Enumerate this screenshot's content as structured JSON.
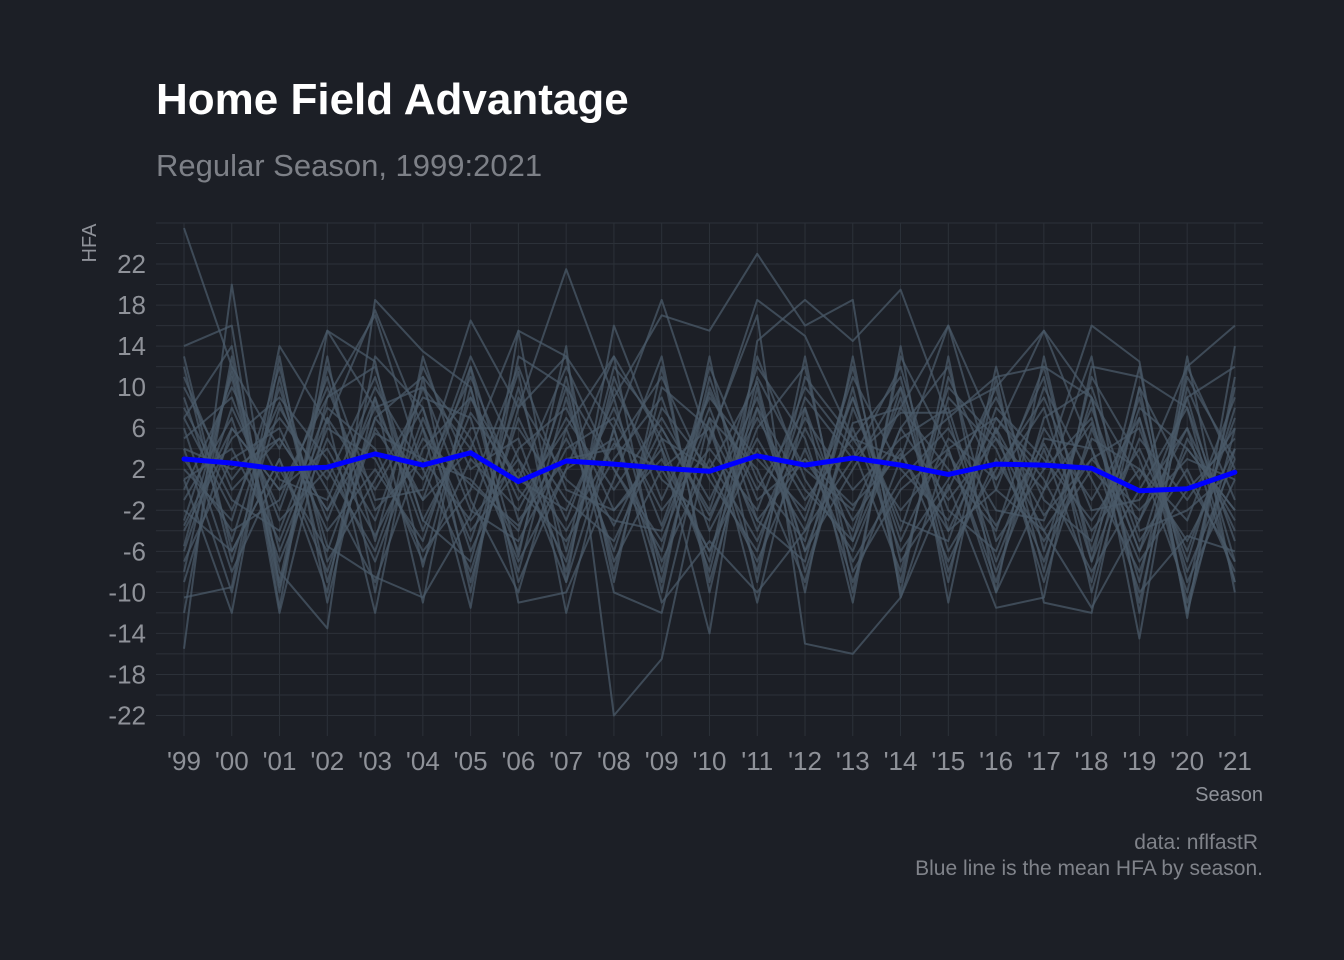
{
  "chart_data": {
    "type": "line",
    "title": "Home Field Advantage",
    "subtitle": "Regular Season, 1999:2021",
    "xlabel": "Season",
    "ylabel": "HFA",
    "caption_lines": [
      "data: nflfastR",
      "Blue line is the mean HFA by season."
    ],
    "categories": [
      "'99",
      "'00",
      "'01",
      "'02",
      "'03",
      "'04",
      "'05",
      "'06",
      "'07",
      "'08",
      "'09",
      "'10",
      "'11",
      "'12",
      "'13",
      "'14",
      "'15",
      "'16",
      "'17",
      "'18",
      "'19",
      "'20",
      "'21"
    ],
    "ylim": [
      -24,
      26
    ],
    "y_ticks": [
      -22,
      -18,
      -14,
      -10,
      -6,
      -2,
      2,
      6,
      10,
      14,
      18,
      22
    ],
    "grid": true,
    "colors": {
      "background": "#1c1f26",
      "grid": "#2c3139",
      "team_lines": "#4a5a68",
      "mean_line": "#0000ff"
    },
    "series": [
      {
        "values": [
          25.5,
          12,
          4,
          15.5,
          8,
          10,
          4,
          15.5,
          13,
          6,
          18.5,
          4.5,
          18.5,
          15,
          5,
          3,
          16,
          5.5,
          15.5,
          9,
          1,
          12,
          16
        ]
      },
      {
        "values": [
          -15.5,
          20,
          -9.5,
          9,
          17,
          2,
          16.5,
          8,
          21.5,
          9,
          17,
          15.5,
          23,
          16,
          18.5,
          -10.5,
          4,
          7,
          2,
          16,
          12.5,
          -12.5,
          14
        ]
      },
      {
        "values": [
          -10.5,
          -9.5,
          14,
          6.5,
          17.5,
          6,
          -11.5,
          15.5,
          -9,
          16,
          4,
          -14,
          14.5,
          18.5,
          14.5,
          19.5,
          7,
          11,
          12,
          9,
          -14.5,
          12,
          2
        ]
      },
      {
        "values": [
          14,
          16,
          -11.5,
          15.5,
          12.5,
          -7.5,
          10,
          -6.5,
          14,
          -22,
          -16.5,
          5,
          17,
          -15,
          -16,
          -10.5,
          0.5,
          -11.5,
          -10.5,
          12,
          11,
          8,
          -9
        ]
      },
      {
        "values": [
          -5.5,
          11.5,
          -8,
          -13.5,
          18.5,
          13.5,
          10,
          -9,
          2,
          13,
          5,
          2,
          10.5,
          -8,
          6.5,
          8,
          16,
          0,
          -4,
          -11.5,
          -3,
          9,
          -7
        ]
      },
      {
        "values": [
          9,
          -5,
          10,
          -5.5,
          -8.5,
          -10.5,
          -2.5,
          11.5,
          -12,
          6,
          -11,
          -5,
          -10,
          -4,
          3,
          7.5,
          7.5,
          10,
          15.5,
          4,
          -10,
          -4.5,
          -6
        ]
      },
      {
        "values": [
          4,
          2,
          5,
          -2,
          5.5,
          3,
          -3,
          3,
          -4,
          4.5,
          2,
          6,
          -3,
          3,
          -1.5,
          3.5,
          -4,
          6,
          -2.5,
          3,
          -2,
          3,
          1
        ]
      },
      {
        "values": [
          -3.5,
          6,
          0,
          4,
          -4.5,
          5,
          0.5,
          -3.5,
          5,
          -3.5,
          6,
          -2.5,
          7,
          -1,
          5,
          -2,
          3.5,
          -3.5,
          4.5,
          -4,
          2,
          -5,
          4
        ]
      },
      {
        "values": [
          7,
          -2,
          8.5,
          -3,
          9,
          -4,
          7.5,
          1,
          -2,
          8,
          -3.5,
          9.5,
          0,
          8,
          -5,
          6,
          -1,
          5,
          0,
          6.5,
          -6,
          4,
          -2
        ]
      },
      {
        "values": [
          1,
          4,
          -5,
          7,
          0,
          8,
          -6,
          4,
          8,
          -2,
          3,
          -6,
          4,
          -4,
          9,
          -5,
          5,
          1,
          8,
          -7,
          5,
          -1,
          6
        ]
      },
      {
        "values": [
          -2,
          -6,
          3,
          -8,
          6,
          -1,
          4,
          -7,
          2,
          5,
          -7,
          3,
          -5,
          6,
          -3,
          4,
          -7,
          3,
          -5,
          2,
          -3,
          6,
          -4
        ]
      },
      {
        "values": [
          5,
          9,
          -3,
          2,
          -6,
          7,
          -4,
          2,
          -7,
          10,
          1,
          -3,
          8,
          -6,
          2,
          10,
          -2,
          -6,
          6,
          -1,
          7,
          -8,
          3
        ]
      },
      {
        "values": [
          -7,
          3,
          6,
          -4,
          2,
          -5,
          9,
          -1,
          6,
          -6,
          8,
          2,
          -7,
          4,
          -7,
          1,
          6,
          -2,
          -3,
          8,
          -5,
          2,
          -8
        ]
      },
      {
        "values": [
          3,
          -4,
          -1,
          10,
          -2,
          3,
          1,
          -4,
          10,
          2,
          -5,
          7,
          2,
          -9,
          8,
          -3,
          -5,
          8,
          3,
          -3,
          4,
          -6,
          7
        ]
      },
      {
        "values": [
          10,
          1,
          7,
          1,
          11,
          -3,
          6,
          6,
          -1,
          -5,
          5,
          -8,
          11,
          2,
          -2,
          8,
          2,
          -4,
          10,
          1,
          -8,
          5,
          -3
        ]
      },
      {
        "values": [
          -1,
          7,
          -7,
          5,
          -3,
          10,
          -2,
          -5,
          4,
          7,
          -2,
          4,
          -2,
          10,
          4,
          -8,
          9,
          4,
          -7,
          5,
          2,
          -3,
          9
        ]
      },
      {
        "values": [
          6,
          -8,
          2,
          -6,
          7,
          1,
          11,
          0,
          -5,
          3,
          9,
          -4,
          5,
          -3,
          11,
          2,
          -3,
          7,
          1,
          -8,
          0,
          8,
          -5
        ]
      },
      {
        "values": [
          -4,
          5,
          9,
          3,
          -7,
          6,
          -5,
          9,
          1,
          -3,
          -4,
          8,
          -4,
          7,
          0,
          5,
          8,
          -7,
          5,
          4,
          -7,
          0,
          5
        ]
      },
      {
        "values": [
          8,
          -1,
          -4,
          8,
          4,
          -7,
          3,
          -2,
          7,
          0,
          7,
          -1,
          9,
          -6,
          6,
          -6,
          1,
          9,
          -1,
          -5,
          9,
          -9,
          1
        ]
      },
      {
        "values": [
          0,
          10,
          1,
          -1,
          10,
          2,
          -8,
          7,
          -3,
          9,
          -8,
          10,
          -1,
          3,
          -4,
          9,
          -6,
          2,
          9,
          -2,
          -1,
          6,
          -9
        ]
      },
      {
        "values": [
          2,
          -3,
          12,
          -7,
          1,
          9,
          7,
          -8,
          9,
          -7,
          2,
          -6,
          6,
          12,
          -8,
          0,
          4,
          -9,
          7,
          10,
          -4,
          -2,
          2
        ]
      },
      {
        "values": [
          -6,
          8,
          -2,
          11,
          -5,
          12,
          2,
          5,
          -8,
          11,
          -1,
          9,
          3,
          -2,
          9,
          -4,
          10,
          5,
          -4,
          3,
          6,
          -7,
          8
        ]
      },
      {
        "values": [
          11,
          0,
          5,
          -2,
          8,
          -1,
          12,
          -3,
          3,
          4,
          11,
          1,
          -6,
          9,
          3,
          12,
          -4,
          0,
          12,
          -6,
          8,
          4,
          -2
        ]
      },
      {
        "values": [
          -8,
          12,
          -6,
          6,
          3,
          -6,
          0,
          12,
          0,
          -2,
          4,
          -7,
          13,
          1,
          -6,
          6,
          12,
          -5,
          2,
          7,
          -9,
          11,
          3
        ]
      },
      {
        "values": [
          12,
          -7,
          8,
          0,
          -9,
          4,
          9,
          1,
          12,
          2,
          -6,
          12,
          1,
          -5,
          12,
          -7,
          0,
          10,
          -8,
          11,
          3,
          -10,
          10
        ]
      },
      {
        "values": [
          -9,
          6,
          0,
          9,
          12,
          -3,
          -7,
          10,
          -6,
          12,
          6,
          -2,
          12,
          5,
          -9,
          3,
          7,
          -8,
          4,
          -9,
          10,
          1,
          -7
        ]
      },
      {
        "values": [
          4,
          -10,
          11,
          -9,
          7,
          11,
          5,
          -6,
          11,
          -8,
          10,
          6,
          -8,
          11,
          5,
          11,
          -8,
          6,
          -9,
          6,
          -6,
          9,
          12
        ]
      },
      {
        "values": [
          -3,
          11,
          -9,
          12,
          -1,
          0,
          13,
          3,
          -9,
          6,
          -9,
          11,
          -3,
          -7,
          10,
          -9,
          11,
          1,
          11,
          -10,
          7,
          -11,
          4
        ]
      },
      {
        "values": [
          13,
          -6,
          3,
          -10,
          13,
          8,
          -9,
          8,
          13,
          -9,
          12,
          -9,
          8,
          0,
          -5,
          10,
          -9,
          12,
          -6,
          9,
          -11,
          10,
          -1
        ]
      },
      {
        "values": [
          -12,
          13,
          -10,
          13,
          -10,
          13,
          -1,
          -10,
          6,
          13,
          -10,
          13,
          -9,
          13,
          -10,
          13,
          4,
          -10,
          13,
          -7,
          12,
          -12,
          11
        ]
      },
      {
        "values": [
          1,
          -12,
          13,
          -11,
          9,
          -11,
          12,
          -11,
          -10,
          1,
          13,
          -10,
          10,
          -10,
          13,
          -10,
          13,
          -10,
          0,
          13,
          -12,
          13,
          -10
        ]
      },
      {
        "values": [
          7,
          14,
          -12,
          7,
          -12,
          11,
          -10,
          13,
          10,
          -10,
          -12,
          7,
          -11,
          8,
          -11,
          14,
          -11,
          11,
          -11,
          -12,
          10,
          -12,
          6
        ]
      }
    ],
    "mean": {
      "name": "mean HFA",
      "values": [
        3.0,
        2.6,
        2.0,
        2.2,
        3.5,
        2.4,
        3.6,
        0.8,
        2.8,
        2.5,
        2.1,
        1.8,
        3.3,
        2.4,
        3.1,
        2.4,
        1.5,
        2.5,
        2.4,
        2.1,
        -0.1,
        0.1,
        1.7
      ]
    }
  }
}
